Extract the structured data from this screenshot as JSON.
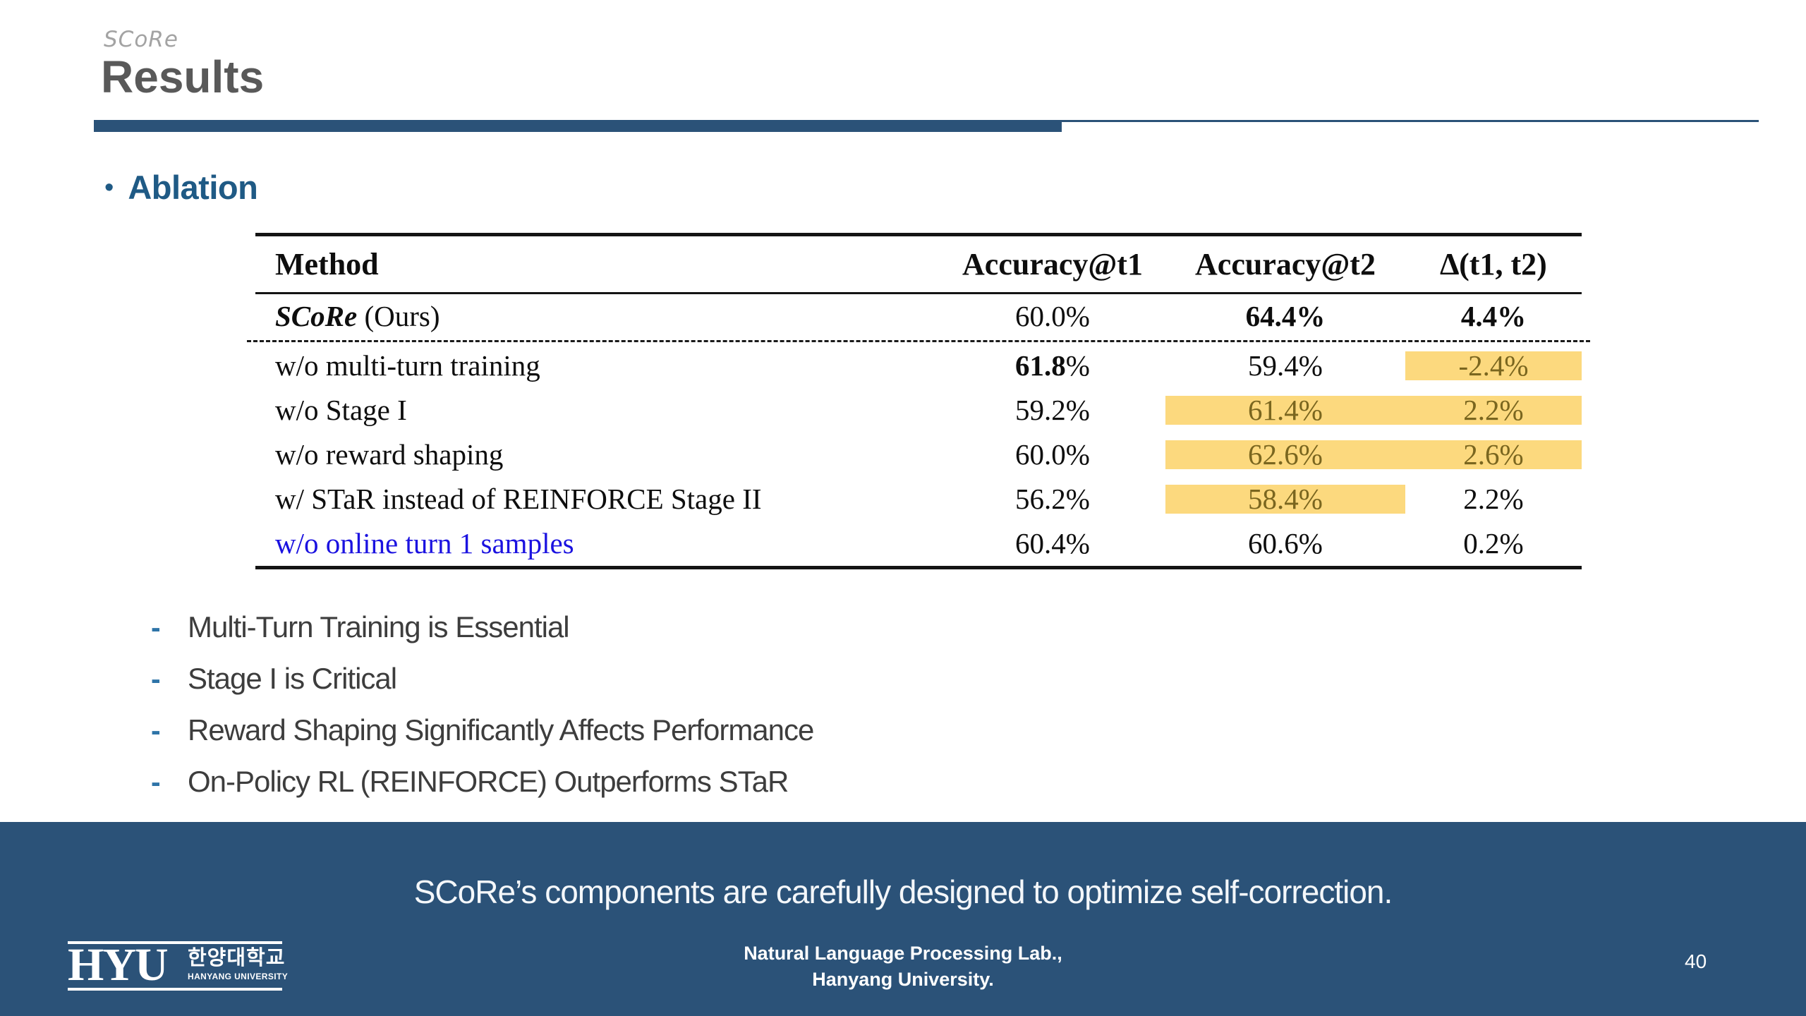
{
  "header": {
    "brand": "SCoRe",
    "title": "Results"
  },
  "section": {
    "bullet": "•",
    "title": "Ablation"
  },
  "table": {
    "headers": {
      "method": "Method",
      "t1": "Accuracy@t1",
      "t2": "Accuracy@t2",
      "delta": "∆(t1, t2)"
    },
    "rows": [
      {
        "name": "SCoRe",
        "suffix": " (Ours)",
        "t1": "60.0%",
        "t2": "64.4%",
        "delta": "4.4%"
      },
      {
        "label": "w/o multi-turn training",
        "t1_bold": "61.8",
        "t1_rest": "%",
        "t2": "59.4%",
        "delta": "-2.4%"
      },
      {
        "label": "w/o Stage I",
        "t1": "59.2%",
        "t2": "61.4%",
        "delta": "2.2%"
      },
      {
        "label": "w/o reward shaping",
        "t1": "60.0%",
        "t2": "62.6%",
        "delta": "2.6%"
      },
      {
        "label": "w/ STaR instead of REINFORCE Stage II",
        "t1": "56.2%",
        "t2": "58.4%",
        "delta": "2.2%"
      },
      {
        "label": "w/o online turn 1 samples",
        "t1": "60.4%",
        "t2": "60.6%",
        "delta": "0.2%"
      }
    ]
  },
  "findings": {
    "dash": "-",
    "items": [
      "Multi-Turn Training is Essential",
      "Stage I is Critical",
      "Reward Shaping Significantly Affects Performance",
      "On-Policy RL (REINFORCE) Outperforms STaR"
    ]
  },
  "banner": {
    "message": "SCoRe’s components are carefully designed to optimize self-correction."
  },
  "footer": {
    "logo_hyu": "HYU",
    "logo_kr": "한양대학교",
    "logo_en": "HANYANG UNIVERSITY",
    "lab_line1": "Natural Language Processing Lab.,",
    "lab_line2": "Hanyang University.",
    "page": "40"
  },
  "colors": {
    "banner_blue": "#2b5278",
    "heading_blue": "#1f5a85",
    "title_gray": "#595959",
    "highlight_yellow": "#fcd97e",
    "highlight_text": "#7a661f",
    "link_blue_row": "#1b12e0",
    "finding_dash_blue": "#2e74a8"
  }
}
